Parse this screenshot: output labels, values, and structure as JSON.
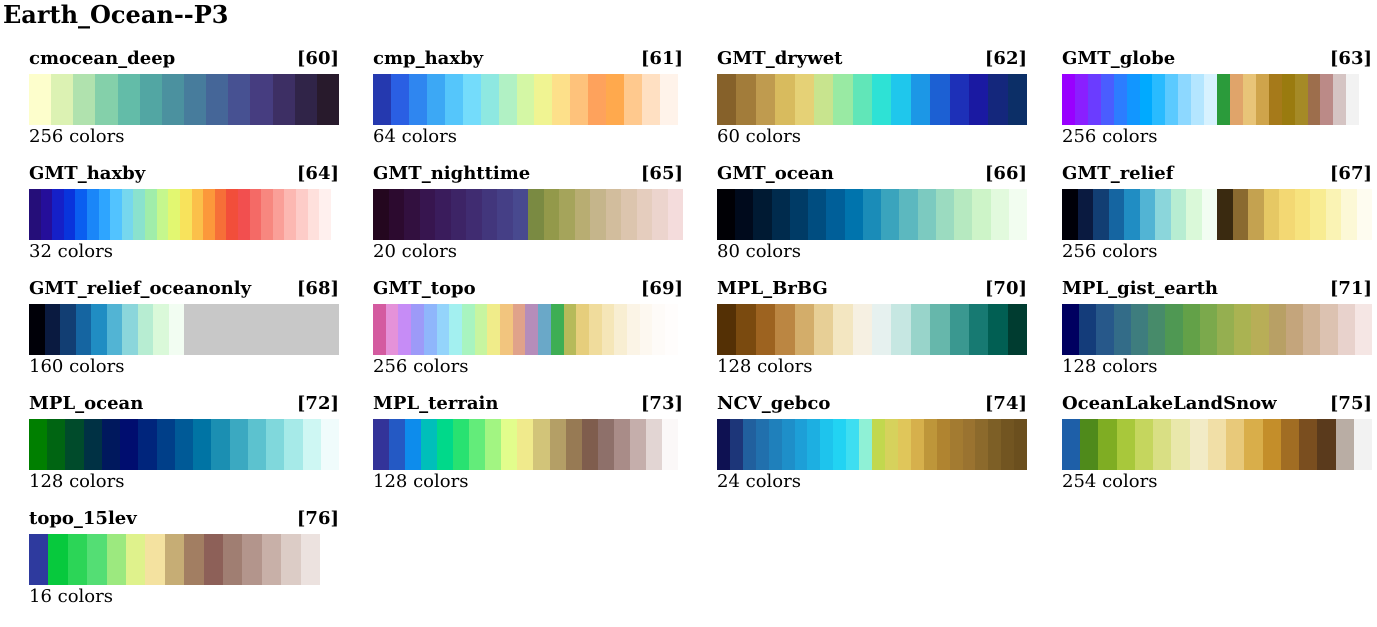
{
  "title": "Earth_Ocean--P3",
  "colormaps": [
    {
      "name": "cmocean_deep",
      "index": "[60]",
      "count_label": "256 colors",
      "colors": [
        "#fdfecc",
        "#dcf2b3",
        "#b0e2ae",
        "#84d0aa",
        "#63bca8",
        "#52a6a3",
        "#4b919f",
        "#477c9c",
        "#456698",
        "#475192",
        "#463d80",
        "#3d2f64",
        "#302448",
        "#281a2c"
      ]
    },
    {
      "name": "cmp_haxby",
      "index": "[61]",
      "count_label": "64 colors",
      "colors": [
        "#2539af",
        "#2a5fe3",
        "#2f86f0",
        "#3ca8f5",
        "#55c6fb",
        "#74dcfb",
        "#8ee8e1",
        "#b1f1c4",
        "#d4f7a5",
        "#f0f492",
        "#fde08a",
        "#fec27b",
        "#fea25c",
        "#ffa94d",
        "#ffc98e",
        "#ffe0c2",
        "#fff3ea"
      ],
      "width": 305
    },
    {
      "name": "GMT_drywet",
      "index": "[62]",
      "count_label": "60 colors",
      "colors": [
        "#86612a",
        "#a27c3a",
        "#bf9b4f",
        "#d8bb5e",
        "#e5d176",
        "#c8e48e",
        "#99eaa3",
        "#61e6b8",
        "#2ee2d5",
        "#1fc7ec",
        "#1c97e6",
        "#1c60d3",
        "#1d30b8",
        "#1a19a2",
        "#14277c",
        "#0c2f67"
      ]
    },
    {
      "name": "GMT_globe",
      "index": "[63]",
      "count_label": "256 colors",
      "colors": [
        "#9900ff",
        "#8a1fff",
        "#6b3cff",
        "#4a5dff",
        "#2c7dff",
        "#1296ff",
        "#00aaff",
        "#29bbff",
        "#5bcaff",
        "#8dd8ff",
        "#b4e6ff",
        "#d7f2ff",
        "#2b9b3b",
        "#e0a46a",
        "#e8c478",
        "#cfa44b",
        "#a67a1a",
        "#9a7b0f",
        "#a58a26",
        "#9d6e4c",
        "#bb8a87",
        "#d5c4c3",
        "#f2f2f2",
        "#ffffff"
      ]
    },
    {
      "name": "GMT_haxby",
      "index": "[64]",
      "count_label": "32 colors",
      "colors": [
        "#250e79",
        "#250e9a",
        "#1520c8",
        "#0934dc",
        "#0a5ef0",
        "#1a86f8",
        "#2ea5ff",
        "#52c3ff",
        "#76d7ee",
        "#8ae2ce",
        "#a0edaa",
        "#c5f78d",
        "#e2f771",
        "#f8e35c",
        "#fbc04a",
        "#fc983b",
        "#f66f38",
        "#f24e3a",
        "#f24f4f",
        "#f46a66",
        "#f7877f",
        "#fa9f98",
        "#fcb8b2",
        "#fdccc8",
        "#fee0dc",
        "#fff0ee"
      ],
      "width": 302
    },
    {
      "name": "GMT_nighttime",
      "index": "[65]",
      "count_label": "20 colors",
      "colors": [
        "#24071f",
        "#2c0a2f",
        "#32103f",
        "#37154f",
        "#3a1c5c",
        "#3d2466",
        "#402c71",
        "#42367c",
        "#453f86",
        "#48498f",
        "#7a8a42",
        "#93994a",
        "#a5a45b",
        "#b8ad72",
        "#c5b58b",
        "#d2bd9d",
        "#dcc5ae",
        "#e5cdbe",
        "#ecd4cd",
        "#f4dcdc"
      ],
      "width": 310
    },
    {
      "name": "GMT_ocean",
      "index": "[66]",
      "count_label": "80 colors",
      "colors": [
        "#000005",
        "#000a1c",
        "#001a33",
        "#002b4d",
        "#003b66",
        "#004d80",
        "#005f99",
        "#0074ad",
        "#1a8cb8",
        "#3aa4bd",
        "#5cb8bf",
        "#7ccac0",
        "#9bdbc0",
        "#b6e9c0",
        "#cdf4c8",
        "#e2fadd",
        "#f2fdf0"
      ]
    },
    {
      "name": "GMT_relief",
      "index": "[67]",
      "count_label": "256 colors",
      "colors": [
        "#000008",
        "#0a1a40",
        "#123e73",
        "#1565a1",
        "#208dc3",
        "#52b4d4",
        "#8bd6db",
        "#b7edd2",
        "#daf9d9",
        "#f2fdf2",
        "#3a2a10",
        "#8a6a30",
        "#c4a250",
        "#e6c864",
        "#f3d873",
        "#f7e37e",
        "#f8ec92",
        "#faf3b4",
        "#fcf8d6",
        "#fefcf0"
      ]
    },
    {
      "name": "GMT_relief_oceanonly",
      "index": "[68]",
      "count_label": "160 colors",
      "colors": [
        "#000008",
        "#0a1a40",
        "#123e73",
        "#1565a1",
        "#208dc3",
        "#52b4d4",
        "#8bd6db",
        "#b7edd2",
        "#daf9d9",
        "#f2fdf2",
        "#c8c8c8",
        "#c8c8c8",
        "#c8c8c8",
        "#c8c8c8",
        "#c8c8c8",
        "#c8c8c8",
        "#c8c8c8",
        "#c8c8c8",
        "#c8c8c8",
        "#c8c8c8"
      ]
    },
    {
      "name": "GMT_topo",
      "index": "[69]",
      "count_label": "256 colors",
      "colors": [
        "#d45ba0",
        "#e592d9",
        "#c68cf6",
        "#9d9af8",
        "#8fb6fb",
        "#94d4fb",
        "#a3f0f0",
        "#a8f4c0",
        "#c7f5a0",
        "#f0ec8a",
        "#f2c57e",
        "#e0a28a",
        "#b58dba",
        "#6aa8c8",
        "#3eae54",
        "#b6ba5a",
        "#e6ce7c",
        "#f0dc9c",
        "#f5e6b8",
        "#f8eed2",
        "#fbf4e6",
        "#fdf8f0",
        "#fefbf8",
        "#fffdfc"
      ],
      "width": 305
    },
    {
      "name": "MPL_BrBG",
      "index": "[70]",
      "count_label": "128 colors",
      "colors": [
        "#543005",
        "#7a4a0f",
        "#9d6320",
        "#bb8642",
        "#d3ad6a",
        "#e7cf96",
        "#f3e6c1",
        "#f6f0e2",
        "#e6f1ef",
        "#c6e7e2",
        "#98d4ca",
        "#66b7ab",
        "#3a9890",
        "#177a72",
        "#015f53",
        "#003c30"
      ]
    },
    {
      "name": "MPL_gist_earth",
      "index": "[71]",
      "count_label": "128 colors",
      "colors": [
        "#000060",
        "#143c7a",
        "#27588a",
        "#336c88",
        "#3e7d7e",
        "#478b6a",
        "#4f9853",
        "#63a148",
        "#7ba94c",
        "#95af50",
        "#aab352",
        "#b8ae57",
        "#b8a065",
        "#c4a57c",
        "#d0b396",
        "#dcc2b1",
        "#e8d2cc",
        "#f5e6e4"
      ]
    },
    {
      "name": "MPL_ocean",
      "index": "[72]",
      "count_label": "128 colors",
      "colors": [
        "#007f00",
        "#006512",
        "#004b2b",
        "#003144",
        "#00185d",
        "#000d6f",
        "#00257c",
        "#003f89",
        "#005a97",
        "#0074a4",
        "#1b8fb2",
        "#3ba9c1",
        "#5cc2cf",
        "#80d8dc",
        "#a6eae8",
        "#cef7f3",
        "#f0fcfc"
      ]
    },
    {
      "name": "MPL_terrain",
      "index": "[73]",
      "count_label": "128 colors",
      "colors": [
        "#333399",
        "#2459c4",
        "#0d8cec",
        "#00bfba",
        "#00d98a",
        "#28e271",
        "#63ec7a",
        "#a2f582",
        "#e2fd8c",
        "#f0ea8c",
        "#d2c479",
        "#b49f66",
        "#977a54",
        "#7f5d4d",
        "#8e706a",
        "#a98c88",
        "#c5aeab",
        "#e2d5d3",
        "#fbf8f8"
      ],
      "width": 305
    },
    {
      "name": "NCV_gebco",
      "index": "[74]",
      "count_label": "24 colors",
      "colors": [
        "#0e1152",
        "#1d3679",
        "#21609e",
        "#2170ad",
        "#1f80bb",
        "#1e8fc9",
        "#1d9fd7",
        "#1dafe1",
        "#1ec4ed",
        "#22d3f3",
        "#3edef1",
        "#8ff1d6",
        "#c2d84e",
        "#d6d25c",
        "#e0c65a",
        "#d6b04c",
        "#be963a",
        "#b08430",
        "#a37b31",
        "#9a7330",
        "#8c6a2c",
        "#7d5f26",
        "#725521",
        "#6b4f1e"
      ]
    },
    {
      "name": "OceanLakeLandSnow",
      "index": "[75]",
      "count_label": "254 colors",
      "colors": [
        "#1e5fa8",
        "#4f8a1b",
        "#7fad23",
        "#a8c83b",
        "#c5d65e",
        "#d9df84",
        "#e9e8ab",
        "#f2ebc6",
        "#f1dfa7",
        "#e8c97a",
        "#d9ae4a",
        "#c48e2a",
        "#a16d23",
        "#7a4e1f",
        "#5a3a1c",
        "#b9ada4",
        "#f2f2f2"
      ]
    },
    {
      "name": "topo_15lev",
      "index": "[76]",
      "count_label": "16 colors",
      "colors": [
        "#2e3a9e",
        "#07c93d",
        "#2cd557",
        "#54de74",
        "#9ce97f",
        "#dff28c",
        "#f4e2a0",
        "#c6ad75",
        "#a27e62",
        "#8d6058",
        "#a07e72",
        "#b3958c",
        "#c8b0a8",
        "#dcccc6",
        "#ece2df"
      ],
      "width": 291
    }
  ]
}
